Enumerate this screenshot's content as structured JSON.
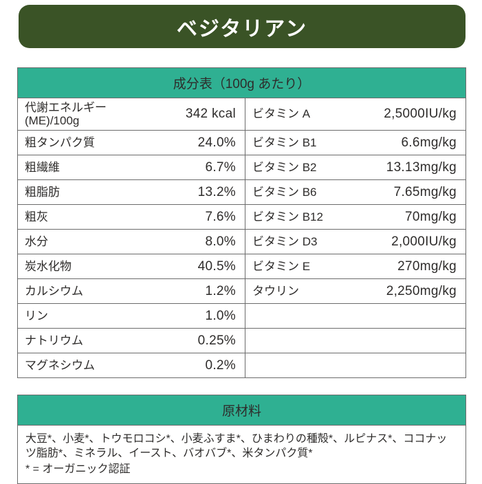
{
  "title_banner": {
    "text": "ベジタリアン"
  },
  "composition_table": {
    "header": "成分表（100g あたり）",
    "left_rows": [
      {
        "label": "代謝エネルギー\n(ME)/100g",
        "value": "342 kcal"
      },
      {
        "label": "粗タンパク質",
        "value": "24.0%"
      },
      {
        "label": "粗繊維",
        "value": "6.7%"
      },
      {
        "label": "粗脂肪",
        "value": "13.2%"
      },
      {
        "label": "粗灰",
        "value": "7.6%"
      },
      {
        "label": "水分",
        "value": "8.0%"
      },
      {
        "label": "炭水化物",
        "value": "40.5%"
      },
      {
        "label": "カルシウム",
        "value": "1.2%"
      },
      {
        "label": "リン",
        "value": "1.0%"
      },
      {
        "label": "ナトリウム",
        "value": "0.25%"
      },
      {
        "label": "マグネシウム",
        "value": "0.2%"
      }
    ],
    "right_rows": [
      {
        "label": "ビタミン A",
        "value": "2,5000IU/kg"
      },
      {
        "label": "ビタミン B1",
        "value": "6.6mg/kg"
      },
      {
        "label": "ビタミン B2",
        "value": "13.13mg/kg"
      },
      {
        "label": "ビタミン B6",
        "value": "7.65mg/kg"
      },
      {
        "label": "ビタミン B12",
        "value": "70mg/kg"
      },
      {
        "label": "ビタミン D3",
        "value": "2,000IU/kg"
      },
      {
        "label": "ビタミン E",
        "value": "270mg/kg"
      },
      {
        "label": "タウリン",
        "value": "2,250mg/kg"
      },
      {
        "label": "",
        "value": ""
      },
      {
        "label": "",
        "value": ""
      },
      {
        "label": "",
        "value": ""
      }
    ]
  },
  "ingredients": {
    "header": "原材料",
    "text": "大豆*、小麦*、トウモロコシ*、小麦ふすま*、ひまわりの種殻*、ルピナス*、ココナッツ脂肪*、ミネラル、イースト、バオバブ*、米タンパク質*",
    "note": "* = オーガニック認証"
  },
  "colors": {
    "banner_green": "#3a5326",
    "teal": "#2fb092",
    "text": "#2e2c2b",
    "border": "#6b6b6b"
  }
}
